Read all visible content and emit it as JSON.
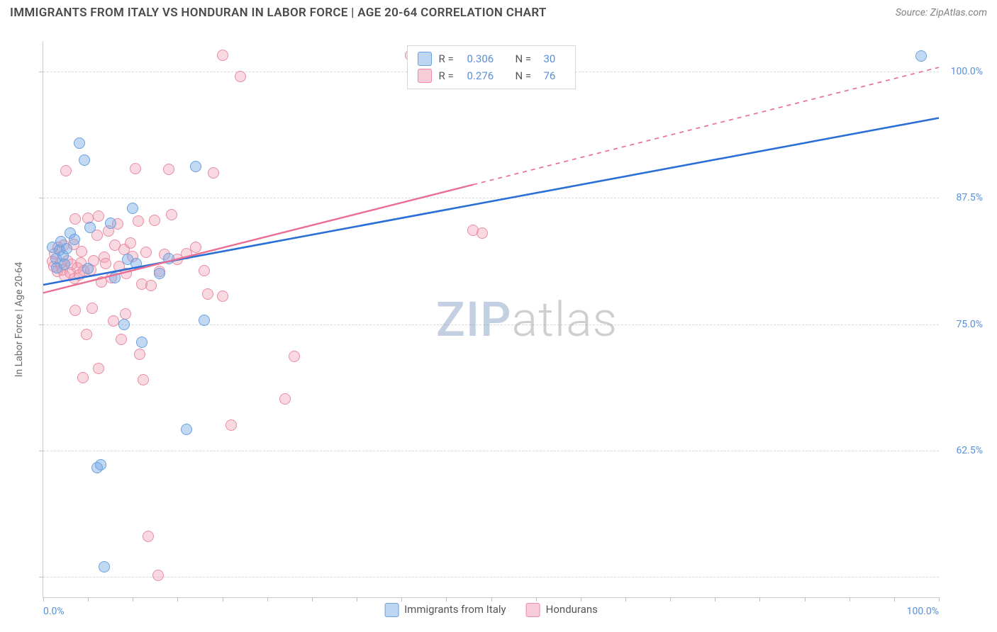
{
  "header": {
    "title": "IMMIGRANTS FROM ITALY VS HONDURAN IN LABOR FORCE | AGE 20-64 CORRELATION CHART",
    "source": "Source: ZipAtlas.com"
  },
  "watermark": {
    "zip": "ZIP",
    "atlas": "atlas"
  },
  "chart": {
    "type": "scatter",
    "background_color": "#ffffff",
    "grid_color": "#d9d9d9",
    "axis_color": "#c8c8c8",
    "tick_label_color": "#5a8fd6",
    "axis_label_color": "#6a6a6a",
    "axis_fontsize": 14,
    "ylabel": "In Labor Force | Age 20-64",
    "xlim": [
      0,
      100
    ],
    "ylim": [
      48,
      103
    ],
    "xticks_minor": [
      0,
      5,
      10,
      15,
      20,
      25,
      30,
      35,
      40,
      45,
      50,
      55,
      60,
      65,
      70,
      75,
      80,
      85,
      90,
      95,
      100
    ],
    "xtick_labels": [
      {
        "x": 0,
        "label": "0.0%"
      },
      {
        "x": 100,
        "label": "100.0%"
      }
    ],
    "yticks": [
      {
        "y": 62.5,
        "label": "62.5%"
      },
      {
        "y": 75.0,
        "label": "75.0%"
      },
      {
        "y": 87.5,
        "label": "87.5%"
      },
      {
        "y": 100.0,
        "label": "100.0%"
      },
      {
        "y": 50.0,
        "label": ""
      }
    ],
    "point_radius": 8,
    "point_border_width": 1.4,
    "series": [
      {
        "key": "italy",
        "label": "Immigrants from Italy",
        "fill_color": "rgba(120,170,230,0.45)",
        "border_color": "#6aa0dd",
        "swatch_fill": "#bdd6f2",
        "swatch_border": "#6aa0dd",
        "R": "0.306",
        "N": "30",
        "trend": {
          "x1": 0,
          "y1": 78.9,
          "x2": 100,
          "y2": 95.4,
          "solid_to_x": 100,
          "color": "#2a6fd6",
          "width": 2.6
        },
        "points": [
          [
            1,
            82.6
          ],
          [
            1.4,
            81.5
          ],
          [
            1.8,
            82.3
          ],
          [
            2,
            83.2
          ],
          [
            2.2,
            81.8
          ],
          [
            2.6,
            82.5
          ],
          [
            3,
            84.0
          ],
          [
            1.5,
            80.6
          ],
          [
            2.4,
            80.9
          ],
          [
            3.5,
            83.4
          ],
          [
            4,
            92.9
          ],
          [
            4.6,
            91.2
          ],
          [
            5,
            80.5
          ],
          [
            5.2,
            84.6
          ],
          [
            6,
            60.8
          ],
          [
            6.4,
            61.1
          ],
          [
            6.8,
            51.0
          ],
          [
            7.5,
            85.0
          ],
          [
            8,
            79.6
          ],
          [
            9,
            75.0
          ],
          [
            9.4,
            81.4
          ],
          [
            10,
            86.5
          ],
          [
            10.4,
            81.0
          ],
          [
            11,
            73.2
          ],
          [
            13,
            80.0
          ],
          [
            14,
            81.5
          ],
          [
            16,
            64.6
          ],
          [
            17,
            90.6
          ],
          [
            18,
            75.4
          ],
          [
            98,
            101.5
          ]
        ]
      },
      {
        "key": "honduran",
        "label": "Hondurans",
        "fill_color": "rgba(240,160,180,0.40)",
        "border_color": "#e98ba4",
        "swatch_fill": "#f7cbd7",
        "swatch_border": "#e98ba4",
        "R": "0.276",
        "N": "76",
        "trend": {
          "x1": 0,
          "y1": 78.1,
          "x2": 100,
          "y2": 100.4,
          "solid_to_x": 48,
          "color": "#e86f92",
          "width": 2.4
        },
        "points": [
          [
            1,
            81.2
          ],
          [
            1.2,
            80.7
          ],
          [
            1.6,
            80.2
          ],
          [
            1.9,
            81.0
          ],
          [
            2.1,
            80.4
          ],
          [
            2.4,
            79.8
          ],
          [
            2.7,
            81.3
          ],
          [
            3,
            80.1
          ],
          [
            3.2,
            80.9
          ],
          [
            3.5,
            79.5
          ],
          [
            3.8,
            80.6
          ],
          [
            4,
            79.9
          ],
          [
            4.2,
            81.1
          ],
          [
            4.5,
            80.3
          ],
          [
            1.3,
            82.0
          ],
          [
            1.7,
            82.6
          ],
          [
            2.3,
            82.8
          ],
          [
            3.4,
            82.9
          ],
          [
            4.3,
            82.2
          ],
          [
            2.5,
            90.2
          ],
          [
            3.6,
            85.4
          ],
          [
            5,
            85.5
          ],
          [
            5.3,
            80.4
          ],
          [
            5.6,
            81.3
          ],
          [
            6,
            83.8
          ],
          [
            6.2,
            85.7
          ],
          [
            6.5,
            79.2
          ],
          [
            6.8,
            81.6
          ],
          [
            7,
            81.0
          ],
          [
            7.3,
            84.2
          ],
          [
            7.6,
            79.6
          ],
          [
            8,
            82.8
          ],
          [
            8.3,
            84.9
          ],
          [
            8.5,
            80.7
          ],
          [
            9,
            82.4
          ],
          [
            9.3,
            80.0
          ],
          [
            9.7,
            83.0
          ],
          [
            10,
            81.7
          ],
          [
            10.3,
            90.4
          ],
          [
            10.6,
            85.2
          ],
          [
            11,
            79.0
          ],
          [
            11.5,
            82.1
          ],
          [
            12,
            78.8
          ],
          [
            12.4,
            85.3
          ],
          [
            13,
            80.2
          ],
          [
            13.5,
            81.9
          ],
          [
            14,
            90.3
          ],
          [
            14.3,
            85.8
          ],
          [
            15,
            81.4
          ],
          [
            16,
            82.0
          ],
          [
            17,
            82.6
          ],
          [
            18,
            80.3
          ],
          [
            18.4,
            78.0
          ],
          [
            19,
            90.0
          ],
          [
            20,
            77.8
          ],
          [
            48,
            84.3
          ],
          [
            49,
            84.0
          ],
          [
            27,
            67.6
          ],
          [
            28,
            71.8
          ],
          [
            4.8,
            74.0
          ],
          [
            8.7,
            73.5
          ],
          [
            10.8,
            72.0
          ],
          [
            11.2,
            69.5
          ],
          [
            11.7,
            54.0
          ],
          [
            12.8,
            50.2
          ],
          [
            6.2,
            70.6
          ],
          [
            7.8,
            75.3
          ],
          [
            9.2,
            76.0
          ],
          [
            5.5,
            76.6
          ],
          [
            3.6,
            76.4
          ],
          [
            4.4,
            69.7
          ],
          [
            22,
            99.5
          ],
          [
            20,
            101.6
          ],
          [
            41,
            101.6
          ],
          [
            41.6,
            101.0
          ],
          [
            21,
            65.0
          ]
        ]
      }
    ]
  },
  "legend_top_labels": {
    "R": "R =",
    "N": "N ="
  },
  "legend_bottom": [
    {
      "series": "italy"
    },
    {
      "series": "honduran"
    }
  ]
}
